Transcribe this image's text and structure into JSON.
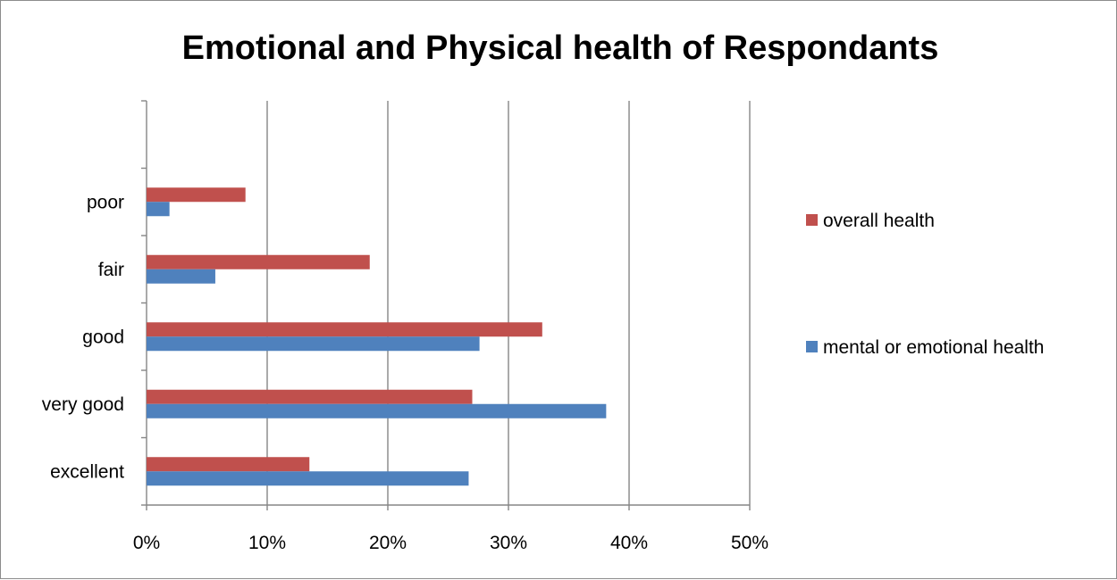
{
  "chart_data": {
    "type": "bar",
    "orientation": "horizontal",
    "title": "Emotional and Physical health of Respondants",
    "categories": [
      "poor",
      "fair",
      "good",
      "very good",
      "excellent"
    ],
    "series": [
      {
        "name": "overall health",
        "color": "#c0504d",
        "values": [
          8.2,
          18.5,
          32.8,
          27.0,
          13.5
        ]
      },
      {
        "name": "mental or emotional health",
        "color": "#4f81bd",
        "values": [
          1.9,
          5.7,
          27.6,
          38.1,
          26.7
        ]
      }
    ],
    "xlim": [
      0,
      50
    ],
    "x_ticks": [
      0,
      10,
      20,
      30,
      40,
      50
    ],
    "x_tick_labels": [
      "0%",
      "10%",
      "20%",
      "30%",
      "40%",
      "50%"
    ],
    "xlabel": "",
    "ylabel": "",
    "grid": "vertical",
    "grid_color": "#868686",
    "legend_position": "right"
  }
}
